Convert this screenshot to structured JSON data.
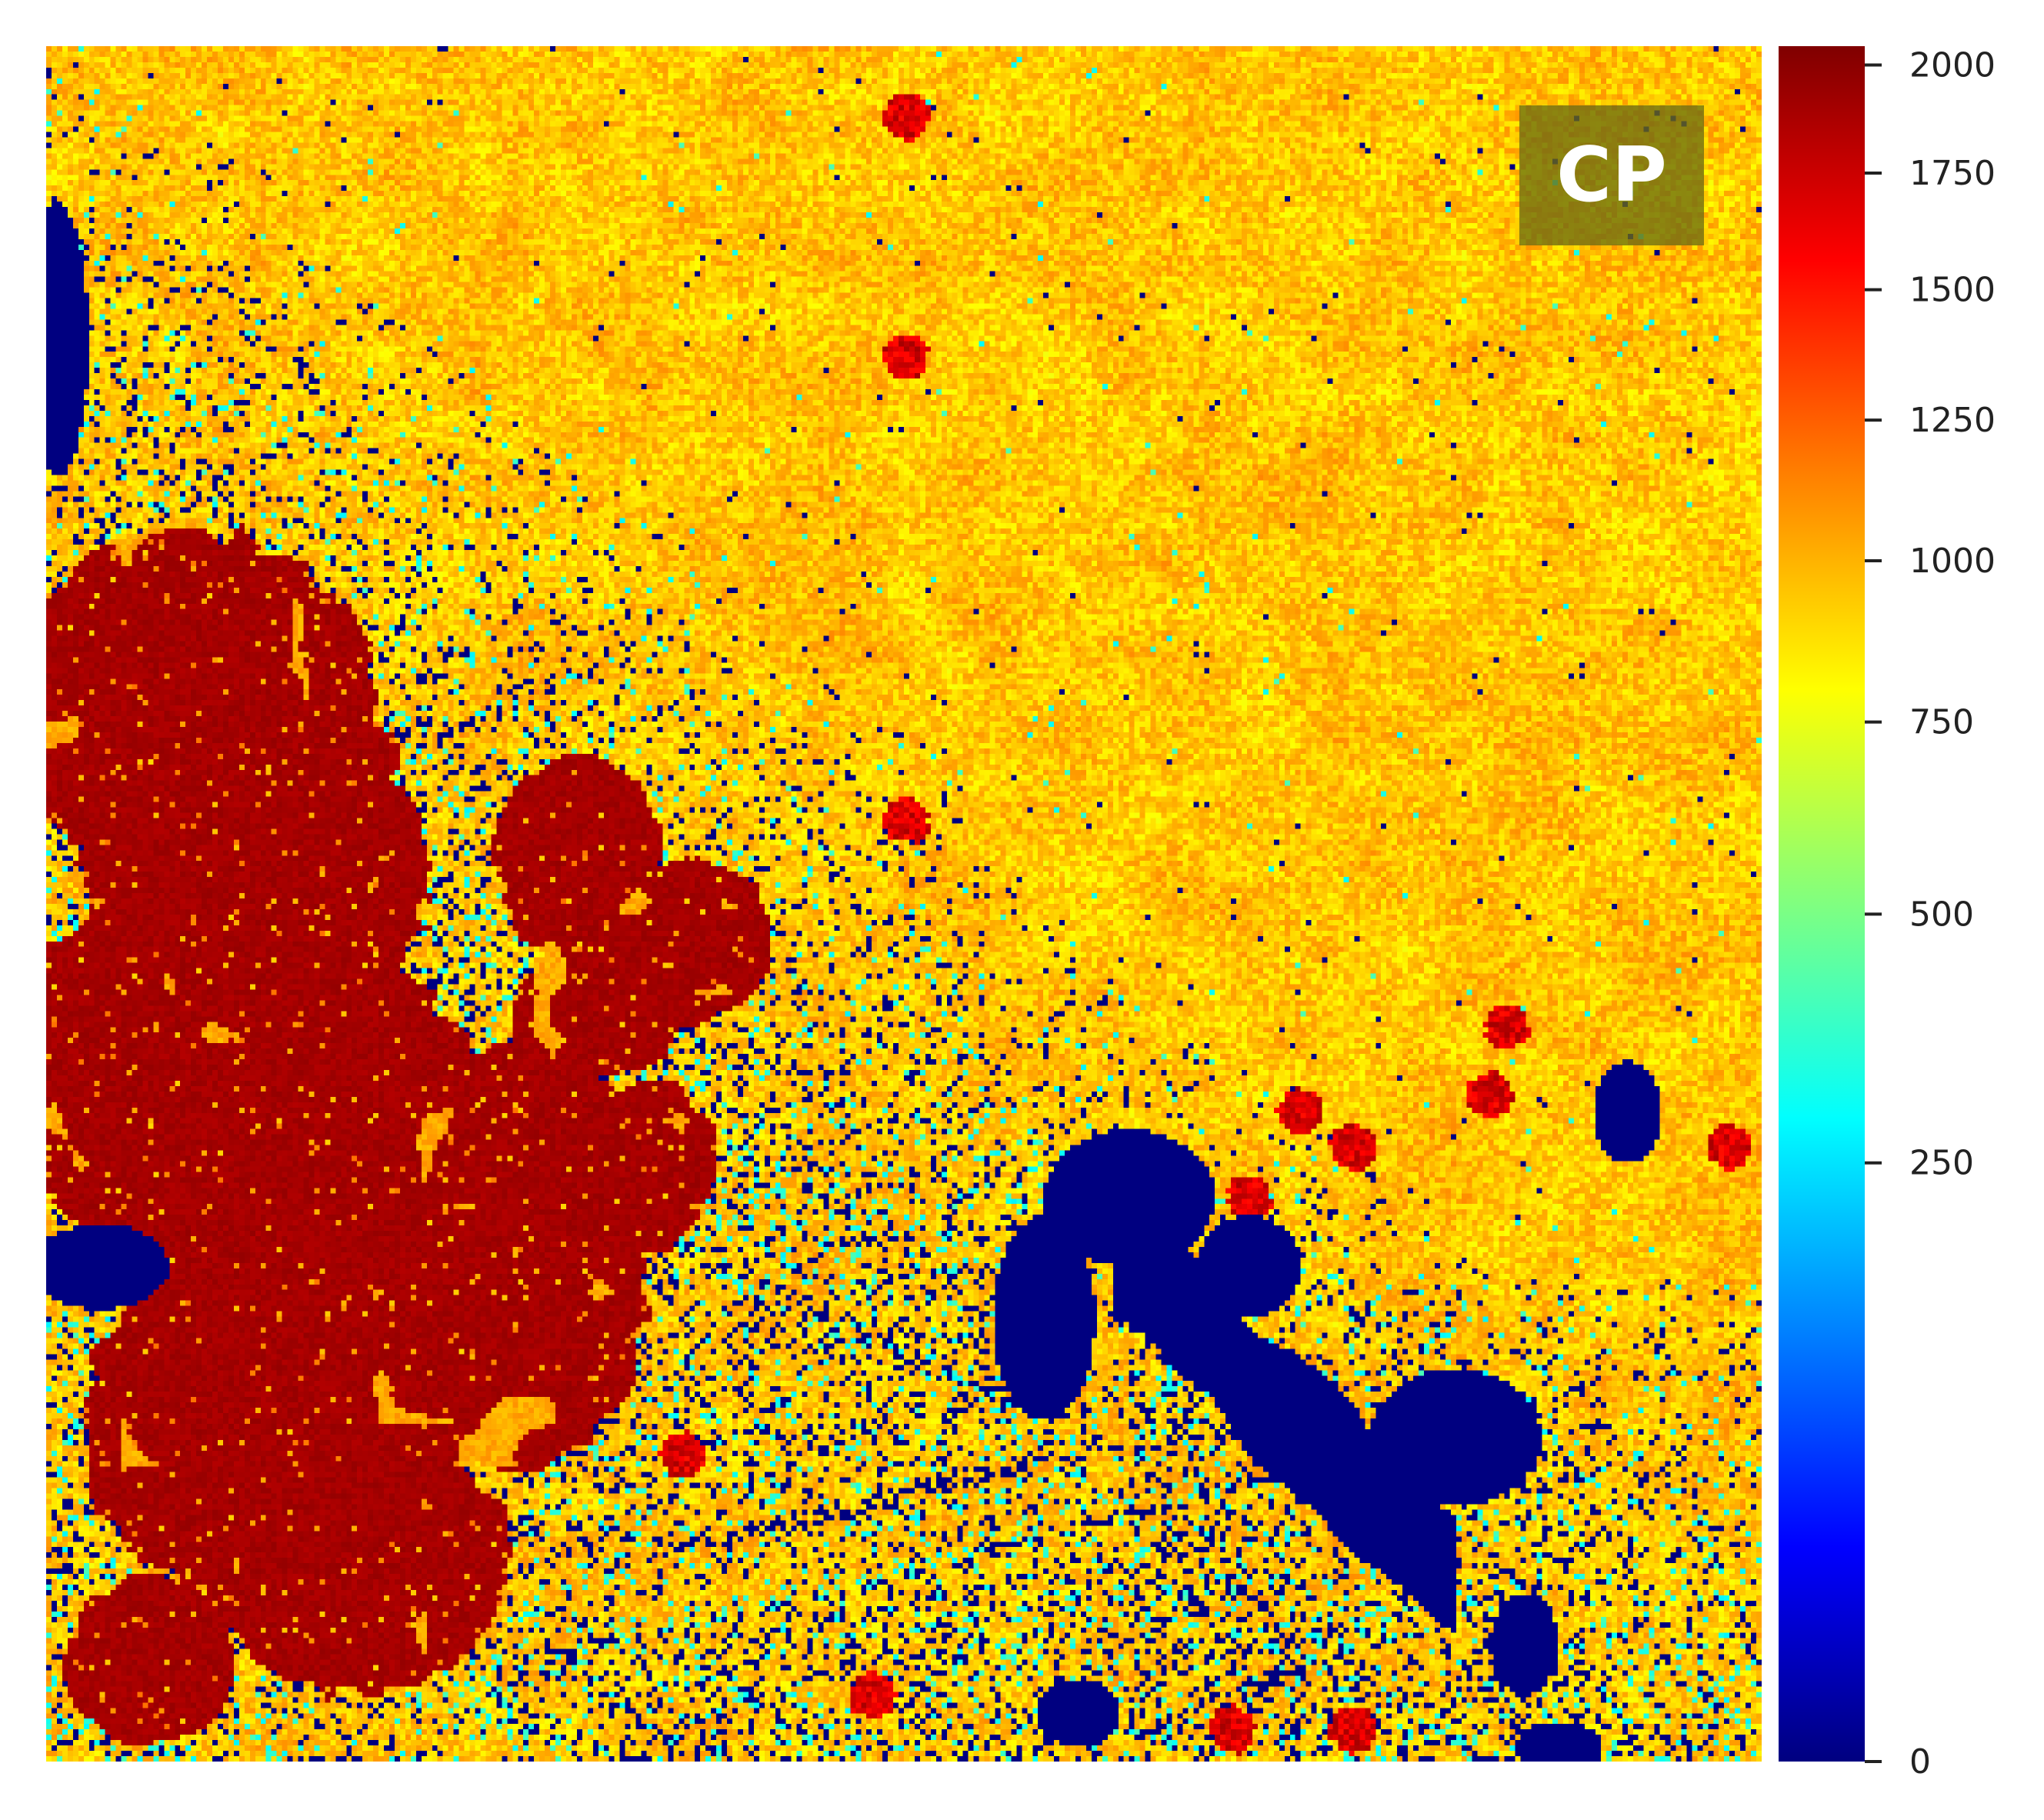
{
  "chart_data": {
    "type": "heatmap",
    "title": "",
    "xlabel": "",
    "ylabel": "",
    "panel_label": "CP",
    "colormap": "jet",
    "color_scale": "nonlinear (ticks unevenly spaced)",
    "value_range": [
      0,
      2000
    ],
    "legend_position": "right",
    "grid": false,
    "colorbar_ticks": [
      0,
      250,
      500,
      750,
      1000,
      1250,
      1500,
      1750,
      2000
    ],
    "dominant_values": {
      "background_texture": 950,
      "red_clusters": 1900,
      "dark_blue_voids": 0,
      "cyan_speckle": 350
    },
    "regions": [
      {
        "description": "upper and right field",
        "approx_value": 950
      },
      {
        "description": "large lower-left cluster",
        "approx_value": 1900
      },
      {
        "description": "central patch",
        "approx_value": 1900
      },
      {
        "description": "left edge voids",
        "approx_value": 0
      },
      {
        "description": "lower-right void band",
        "approx_value": 0
      }
    ]
  }
}
